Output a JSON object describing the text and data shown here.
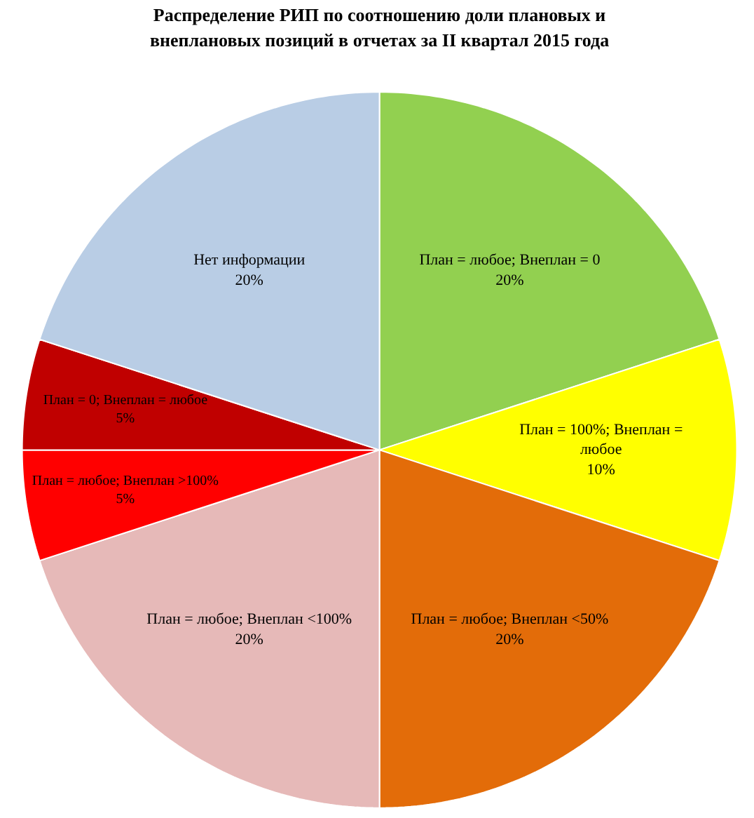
{
  "chart_data": {
    "type": "pie",
    "title": "Распределение РИП по соотношению доли плановых и внеплановых позиций в отчетах за II квартал 2015 года",
    "categories": [
      "План = любое; Внеплан = 0",
      "План = 100%; Внеплан = любое",
      "План = любое; Внеплан <50%",
      "План = любое; Внеплан <100%",
      "План = любое; Внеплан >100%",
      "План = 0; Внеплан = любое",
      "Нет информации"
    ],
    "values": [
      20,
      10,
      20,
      20,
      5,
      5,
      20
    ],
    "value_labels": [
      "20%",
      "10%",
      "20%",
      "20%",
      "5%",
      "5%",
      "20%"
    ],
    "colors": [
      "#92d050",
      "#ffff00",
      "#e36c09",
      "#e6b9b8",
      "#ff0000",
      "#c00000",
      "#b9cde5"
    ]
  }
}
